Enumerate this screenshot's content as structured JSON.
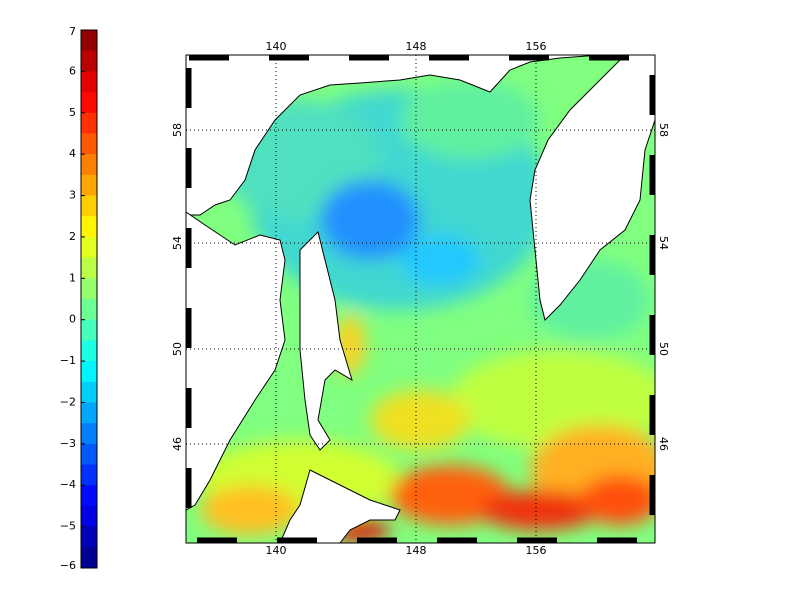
{
  "colorbar": {
    "ticks": [
      "7",
      "6",
      "5",
      "4",
      "3",
      "2",
      "1",
      "0",
      "−1",
      "−2",
      "−3",
      "−4",
      "−5",
      "−6"
    ]
  },
  "map": {
    "lon_ticks": [
      "140",
      "148",
      "156"
    ],
    "lat_ticks": [
      "58",
      "54",
      "50",
      "46"
    ]
  }
}
